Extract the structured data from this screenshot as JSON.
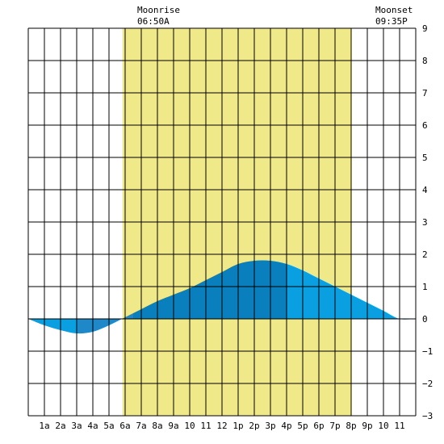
{
  "chart_data": {
    "type": "area",
    "title": "",
    "xlabel": "",
    "ylabel": "",
    "ylim": [
      -3,
      9
    ],
    "xlim": [
      0,
      24
    ],
    "x_tick_labels": [
      "1a",
      "2a",
      "3a",
      "4a",
      "5a",
      "6a",
      "7a",
      "8a",
      "9a",
      "10",
      "11",
      "12",
      "1p",
      "2p",
      "3p",
      "4p",
      "5p",
      "6p",
      "7p",
      "8p",
      "9p",
      "10",
      "11"
    ],
    "y_ticks": [
      -3,
      -2,
      -1,
      0,
      1,
      2,
      3,
      4,
      5,
      6,
      7,
      8,
      9
    ],
    "grid": true,
    "daylight": {
      "start": 5.83,
      "end": 20.0,
      "color": "#f0e98a"
    },
    "annotations": [
      {
        "label": "Moonrise",
        "time": "06:50A",
        "x": 6.83
      },
      {
        "label": "Moonset",
        "time": "09:35P",
        "x": 21.58
      }
    ],
    "series": [
      {
        "x": [
          0,
          1,
          2,
          3,
          4,
          5,
          6,
          7,
          8,
          9,
          10,
          11,
          12,
          13,
          14,
          15,
          16,
          17,
          18,
          19,
          20,
          21,
          22,
          23,
          24
        ],
        "values": [
          0.0,
          -0.2,
          -0.35,
          -0.45,
          -0.4,
          -0.2,
          0.05,
          0.3,
          0.55,
          0.75,
          0.95,
          1.2,
          1.45,
          1.7,
          1.8,
          1.8,
          1.7,
          1.5,
          1.25,
          1.0,
          0.75,
          0.5,
          0.25,
          0.0,
          0.0
        ],
        "colors": {
          "tide_low_dark": "#1e88c8",
          "tide_rising": "#0a7fbd",
          "tide_light": "#0a9fe0"
        }
      }
    ]
  },
  "moonrise": {
    "label": "Moonrise",
    "time": "06:50A"
  },
  "moonset": {
    "label": "Moonset",
    "time": "09:35P"
  }
}
